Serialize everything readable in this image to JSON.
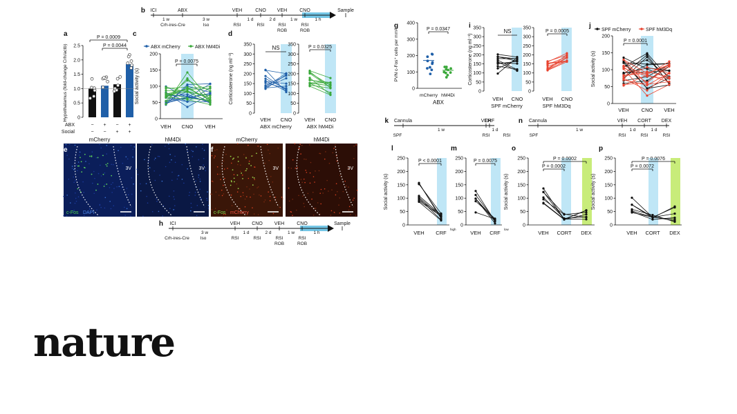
{
  "brand": "nature",
  "timeline_b": {
    "letter": "b",
    "labels": [
      "ICI",
      "ABX",
      "VEH",
      "CNO",
      "VEH",
      "CNO",
      "Sample"
    ],
    "sub": [
      "1 w",
      "3 w",
      "1 d",
      "2 d",
      "1 w",
      "1 h"
    ],
    "bottom": [
      "Crh-ires-Cre",
      "Iso",
      "RSI",
      "RSI",
      "RSI",
      "RSI"
    ],
    "rob": "ROB"
  },
  "timeline_h": {
    "letter": "h",
    "labels": [
      "ICI",
      "VEH",
      "CNO",
      "VEH",
      "CNO",
      "Sample"
    ],
    "sub": [
      "3 w",
      "1 d",
      "2 d",
      "1 w",
      "1 h"
    ],
    "bottom": [
      "Crh-ires-Cre",
      "Iso",
      "RSI",
      "RSI",
      "RSI",
      "RSI"
    ],
    "rob": "ROB"
  },
  "timeline_k": {
    "letter": "k",
    "labels": [
      "Cannula",
      "VEH",
      "CRF"
    ],
    "sub": [
      "1 w",
      "1 d"
    ],
    "bottom": [
      "SPF",
      "RSI",
      "RSI"
    ]
  },
  "timeline_n": {
    "letter": "n",
    "labels": [
      "Cannula",
      "VEH",
      "CORT",
      "DEX"
    ],
    "sub": [
      "1 w",
      "1 d",
      "1 d"
    ],
    "bottom": [
      "SPF",
      "RSI",
      "RSI",
      "RSI"
    ]
  },
  "panel_a": {
    "letter": "a",
    "ylabel": "Hypothalamus (fold-change Crh/actb)",
    "ticks": [
      "0",
      "0.5",
      "1.0",
      "1.5",
      "2.0",
      "2.5"
    ],
    "row1_label": "ABX",
    "row1": [
      "−",
      "+",
      "−",
      "+"
    ],
    "row2_label": "Social",
    "row2": [
      "−",
      "−",
      "+",
      "+"
    ],
    "p1": "P = 0.0009",
    "p2": "P = 0.0044"
  },
  "panel_c": {
    "letter": "c",
    "ylabel": "Social activity (s)",
    "legend": [
      "ABX mCherry",
      "ABX hM4Di"
    ],
    "ticks": [
      "0",
      "50",
      "100",
      "150",
      "200"
    ],
    "x": [
      "VEH",
      "CNO",
      "VEH"
    ],
    "p": "P = 0.0075"
  },
  "panel_d": {
    "letter": "d",
    "ylabel": "Corticosterone (ng ml⁻¹)",
    "ticks": [
      "0",
      "50",
      "100",
      "150",
      "200",
      "250",
      "300",
      "350"
    ],
    "x": [
      "VEH",
      "CNO"
    ],
    "groups": [
      "ABX mCherry",
      "ABX hM4Di"
    ],
    "ns": "NS",
    "p": "P = 0.0325"
  },
  "panel_e": {
    "letter": "e",
    "labels": [
      "mCherry",
      "hM4Di"
    ],
    "region": "3V",
    "stain": [
      "c-Fos",
      "DAPI"
    ]
  },
  "panel_f": {
    "letter": "f",
    "labels": [
      "mCherry",
      "hM4Di"
    ],
    "region": "3V",
    "stain": [
      "c-Fos",
      "mCherry"
    ]
  },
  "panel_g": {
    "letter": "g",
    "ylabel": "PVN c-Fos⁺ cells per mm²",
    "ticks": [
      "0",
      "100",
      "200",
      "300",
      "400"
    ],
    "x": [
      "mCherry",
      "hM4Di"
    ],
    "group": "ABX",
    "p": "P = 0.0347"
  },
  "panel_i": {
    "letter": "i",
    "ylabel": "Corticosterone (ng ml⁻¹)",
    "ticks": [
      "0",
      "50",
      "100",
      "150",
      "200",
      "250",
      "300",
      "350"
    ],
    "x": [
      "VEH",
      "CNO"
    ],
    "groups": [
      "SPF mCherry",
      "SPF hM3Dq"
    ],
    "ns": "NS",
    "p": "P = 0.0005"
  },
  "panel_j": {
    "letter": "j",
    "ylabel": "Social activity (s)",
    "legend": [
      "SPF mCherry",
      "SPF hM3Dq"
    ],
    "ticks": [
      "0",
      "50",
      "100",
      "150",
      "200"
    ],
    "x": [
      "VEH",
      "CNO",
      "VEH"
    ],
    "p": "P = 0.0001"
  },
  "panel_l": {
    "letter": "l",
    "ylabel": "Social activity (s)",
    "ticks": [
      "0",
      "50",
      "100",
      "150",
      "200",
      "250"
    ],
    "x": [
      "VEH",
      "CRF"
    ],
    "xsup": "high",
    "p": "P < 0.0001"
  },
  "panel_m": {
    "letter": "m",
    "ticks": [
      "0",
      "50",
      "100",
      "150",
      "200",
      "250"
    ],
    "x": [
      "VEH",
      "CRF"
    ],
    "xsup": "low",
    "p": "P = 0.0075"
  },
  "panel_o": {
    "letter": "o",
    "ylabel": "Social activity (s)",
    "ticks": [
      "0",
      "50",
      "100",
      "150",
      "200",
      "250"
    ],
    "x": [
      "VEH",
      "CORT",
      "DEX"
    ],
    "p1": "P = 0.0002",
    "p2": "P = 0.0002"
  },
  "panel_p": {
    "letter": "p",
    "ylabel": "Social activity (s)",
    "ticks": [
      "0",
      "50",
      "100",
      "150",
      "200",
      "250"
    ],
    "x": [
      "VEH",
      "CORT",
      "DEX"
    ],
    "p1": "P = 0.0076",
    "p2": "P = 0.0072"
  },
  "colors": {
    "blue": "#1f5fa8",
    "green": "#3aa83a",
    "red": "#e8432f",
    "black": "#111111",
    "cno_band": "#bfe6f6",
    "dex_band": "#c8ec7a"
  }
}
